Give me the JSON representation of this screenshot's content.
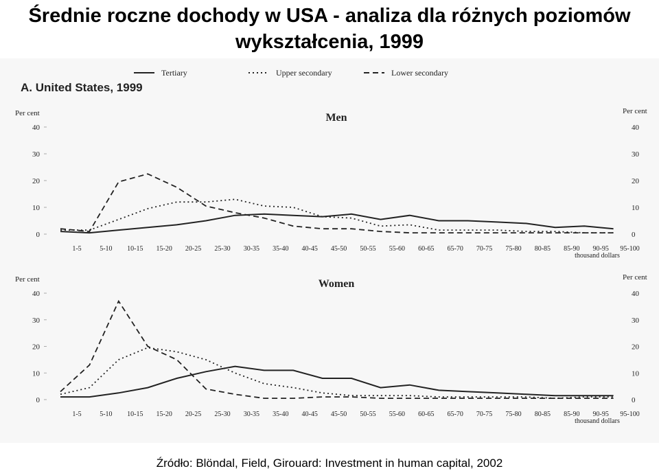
{
  "title": "Średnie roczne dochody w USA - analiza dla różnych poziomów wykształcenia, 1999",
  "panel_label": "A. United States, 1999",
  "source": "Źródło: Blöndal, Field, Girouard: Investment in human capital, 2002",
  "chart_data": [
    {
      "type": "line",
      "title": "Men",
      "y_label": "Per cent",
      "x_label": "thousand dollars",
      "categories": [
        "1-5",
        "5-10",
        "10-15",
        "15-20",
        "20-25",
        "25-30",
        "30-35",
        "35-40",
        "40-45",
        "45-50",
        "50-55",
        "55-60",
        "60-65",
        "65-70",
        "70-75",
        "75-80",
        "80-85",
        "85-90",
        "90-95",
        "95-100"
      ],
      "ylim": [
        0,
        40
      ],
      "yticks": [
        0,
        10,
        20,
        30,
        40
      ],
      "series": [
        {
          "name": "Tertiary",
          "color": "#222222",
          "style": "solid",
          "values": [
            1,
            0.5,
            1.5,
            2.5,
            3.5,
            5,
            7,
            7.5,
            7,
            6.5,
            7.5,
            5.5,
            7,
            5,
            5,
            4.5,
            4,
            2.5,
            3,
            2
          ]
        },
        {
          "name": "Upper secondary",
          "color": "#222222",
          "style": "dotted",
          "values": [
            1.5,
            1.5,
            5.5,
            9.5,
            12,
            12,
            13,
            10.5,
            10,
            6.5,
            6,
            3,
            3.5,
            1.5,
            1.5,
            1.5,
            1,
            1,
            0.5,
            0.5
          ]
        },
        {
          "name": "Lower secondary",
          "color": "#222222",
          "style": "dashed",
          "values": [
            2,
            1,
            19.5,
            22.5,
            17.5,
            10.5,
            8,
            6,
            3,
            2,
            2,
            1,
            0.5,
            0.5,
            0.5,
            0.5,
            0.5,
            0.5,
            0.5,
            0.5
          ]
        }
      ]
    },
    {
      "type": "line",
      "title": "Women",
      "y_label": "Per cent",
      "x_label": "thousand dollars",
      "categories": [
        "1-5",
        "5-10",
        "10-15",
        "15-20",
        "20-25",
        "25-30",
        "30-35",
        "35-40",
        "40-45",
        "45-50",
        "50-55",
        "55-60",
        "60-65",
        "65-70",
        "70-75",
        "75-80",
        "80-85",
        "85-90",
        "90-95",
        "95-100"
      ],
      "ylim": [
        0,
        40
      ],
      "yticks": [
        0,
        10,
        20,
        30,
        40
      ],
      "series": [
        {
          "color": "#222222",
          "style": "solid",
          "values": [
            1,
            1,
            2.5,
            4.5,
            8,
            10.5,
            12.5,
            11,
            11,
            8,
            8,
            4.5,
            5.5,
            3.5,
            3,
            2.5,
            2,
            1.5,
            1.5,
            1.5
          ]
        },
        {
          "color": "#222222",
          "style": "dotted",
          "values": [
            2,
            4.5,
            15,
            19.5,
            18,
            15,
            10,
            6,
            4.5,
            2.5,
            1.5,
            1.5,
            1.5,
            1,
            1,
            1,
            1,
            0.5,
            1,
            1
          ]
        },
        {
          "color": "#222222",
          "style": "dashed",
          "values": [
            3,
            13,
            37,
            20,
            15,
            4,
            2,
            0.5,
            0.5,
            1,
            1,
            0.5,
            0.5,
            0.5,
            0.5,
            0.5,
            0.5,
            0.5,
            0.5,
            0.5
          ]
        }
      ]
    }
  ]
}
